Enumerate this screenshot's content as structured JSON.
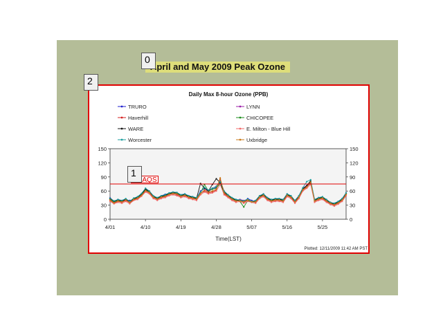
{
  "slide": {
    "title": "April and May 2009 Peak Ozone",
    "markers": [
      "0",
      "1",
      "2"
    ]
  },
  "colors": {
    "background": "#b4bd98",
    "title_highlight": "#dede7a",
    "frame": "#e00000",
    "plot_bg": "#f4f4f4",
    "naaqs": "#e00000"
  },
  "chart_data": {
    "type": "line",
    "title": "Daily Max 8-hour Ozone (PPB)",
    "xlabel": "Time(LST)",
    "ylabel": "",
    "x_ticks": [
      "4/01",
      "4/10",
      "4/19",
      "4/28",
      "5/07",
      "5/16",
      "5/25"
    ],
    "x_tick_days": [
      0,
      9,
      18,
      27,
      36,
      45,
      54
    ],
    "y_ticks": [
      0,
      30,
      60,
      90,
      120,
      150
    ],
    "ylim": [
      0,
      150
    ],
    "xlim_days": [
      0,
      60
    ],
    "grid": false,
    "legend_position": "top",
    "footer": "Plotted: 12/11/2009 11:42 AM PST",
    "threshold": {
      "label": "NAAQS",
      "value": 75
    },
    "series": [
      {
        "name": "TRURO",
        "color": "#1f1fcf",
        "values": [
          44,
          39,
          40,
          38,
          41,
          40,
          42,
          48,
          52,
          63,
          58,
          48,
          45,
          50,
          53,
          55,
          57,
          56,
          52,
          54,
          50,
          48,
          45,
          60,
          65,
          62,
          64,
          68,
          80,
          58,
          52,
          44,
          42,
          40,
          38,
          44,
          40,
          38,
          48,
          52,
          45,
          40,
          44,
          42,
          40,
          52,
          50,
          38,
          48,
          64,
          70,
          76,
          40,
          44,
          46,
          40,
          35,
          34,
          38,
          44,
          56
        ]
      },
      {
        "name": "LYNN",
        "color": "#9b1fa8",
        "values": [
          46,
          38,
          42,
          40,
          43,
          38,
          44,
          45,
          54,
          65,
          60,
          50,
          44,
          48,
          50,
          54,
          55,
          56,
          50,
          52,
          48,
          46,
          44,
          58,
          66,
          58,
          66,
          70,
          82,
          60,
          50,
          45,
          40,
          42,
          40,
          42,
          38,
          40,
          50,
          54,
          46,
          42,
          42,
          44,
          42,
          54,
          48,
          40,
          50,
          66,
          72,
          80,
          42,
          46,
          44,
          42,
          36,
          32,
          36,
          42,
          54
        ]
      },
      {
        "name": "Haverhill",
        "color": "#d42020",
        "values": [
          40,
          34,
          38,
          36,
          40,
          35,
          41,
          44,
          50,
          60,
          56,
          46,
          42,
          46,
          48,
          52,
          54,
          52,
          48,
          50,
          46,
          44,
          42,
          55,
          60,
          56,
          58,
          62,
          86,
          54,
          48,
          42,
          38,
          40,
          36,
          40,
          38,
          36,
          46,
          50,
          42,
          38,
          40,
          40,
          38,
          50,
          46,
          36,
          46,
          62,
          68,
          78,
          38,
          42,
          44,
          38,
          33,
          30,
          34,
          40,
          52
        ]
      },
      {
        "name": "CHICOPEE",
        "color": "#1c8c1c",
        "values": [
          42,
          36,
          40,
          38,
          42,
          36,
          43,
          46,
          52,
          62,
          58,
          48,
          44,
          48,
          50,
          54,
          56,
          55,
          50,
          52,
          48,
          46,
          44,
          56,
          74,
          60,
          64,
          66,
          76,
          56,
          50,
          44,
          40,
          38,
          26,
          40,
          36,
          38,
          48,
          52,
          44,
          40,
          42,
          42,
          40,
          52,
          48,
          38,
          48,
          64,
          70,
          80,
          40,
          44,
          46,
          40,
          34,
          32,
          36,
          42,
          54
        ]
      },
      {
        "name": "WARE",
        "color": "#111111",
        "values": [
          44,
          38,
          41,
          39,
          42,
          37,
          44,
          47,
          54,
          64,
          59,
          49,
          45,
          49,
          51,
          55,
          57,
          56,
          51,
          53,
          49,
          47,
          45,
          76,
          66,
          60,
          74,
          86,
          78,
          58,
          51,
          45,
          41,
          40,
          38,
          42,
          37,
          39,
          49,
          53,
          45,
          41,
          43,
          43,
          41,
          53,
          49,
          39,
          49,
          65,
          71,
          82,
          41,
          45,
          47,
          41,
          35,
          33,
          37,
          43,
          55
        ]
      },
      {
        "name": "E. Milton - Blue Hill",
        "color": "#f06a6a",
        "values": [
          38,
          33,
          36,
          34,
          38,
          33,
          40,
          42,
          49,
          58,
          54,
          44,
          40,
          44,
          46,
          50,
          52,
          50,
          46,
          48,
          44,
          42,
          40,
          52,
          58,
          54,
          56,
          60,
          74,
          52,
          46,
          40,
          36,
          38,
          34,
          38,
          36,
          34,
          44,
          48,
          40,
          36,
          38,
          38,
          36,
          48,
          44,
          34,
          44,
          60,
          66,
          74,
          36,
          40,
          42,
          36,
          31,
          28,
          32,
          38,
          50
        ]
      },
      {
        "name": "Worcester",
        "color": "#1a9e9e",
        "values": [
          45,
          39,
          42,
          40,
          44,
          38,
          45,
          48,
          55,
          66,
          60,
          50,
          46,
          50,
          52,
          56,
          58,
          57,
          52,
          54,
          50,
          48,
          46,
          58,
          68,
          62,
          66,
          70,
          80,
          60,
          52,
          46,
          42,
          41,
          39,
          43,
          38,
          40,
          50,
          54,
          46,
          42,
          44,
          44,
          42,
          54,
          50,
          40,
          50,
          67,
          80,
          84,
          42,
          46,
          48,
          42,
          36,
          34,
          38,
          44,
          56
        ]
      },
      {
        "name": "Uxbridge",
        "color": "#c87a1a",
        "values": [
          41,
          35,
          39,
          37,
          41,
          36,
          42,
          45,
          51,
          61,
          57,
          47,
          43,
          47,
          49,
          53,
          55,
          54,
          49,
          51,
          47,
          45,
          43,
          55,
          62,
          58,
          60,
          64,
          88,
          56,
          49,
          43,
          39,
          39,
          37,
          41,
          37,
          37,
          47,
          51,
          43,
          39,
          41,
          41,
          39,
          51,
          47,
          37,
          47,
          63,
          69,
          79,
          39,
          43,
          45,
          39,
          34,
          31,
          35,
          41,
          53
        ]
      }
    ]
  }
}
